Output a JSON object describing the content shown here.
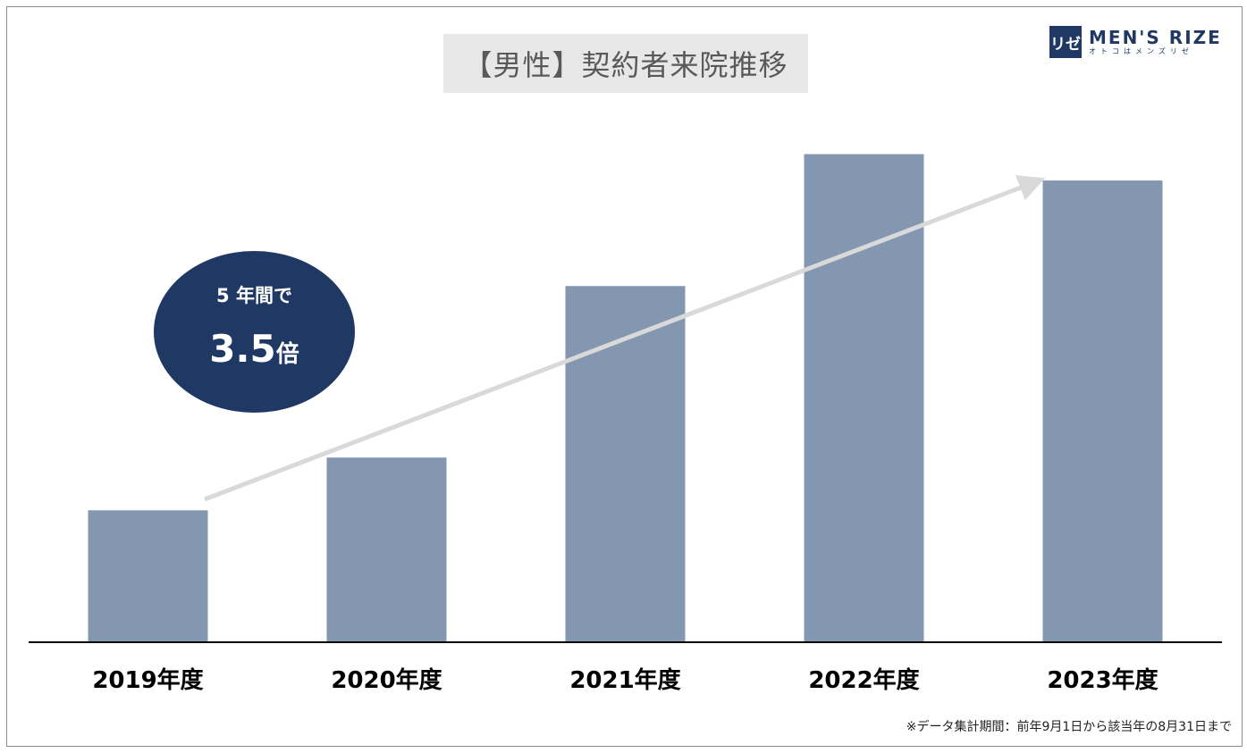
{
  "title": "【男性】契約者来院推移",
  "logo": {
    "mark": "リゼ",
    "main": "MEN'S RIZE",
    "sub": "オトコはメンズリゼ"
  },
  "callout": {
    "line1": "5 年間で",
    "value": "3.5",
    "unit": "倍"
  },
  "footnote": "※データ集計期間：前年9月1日から該当年の8月31日まで",
  "colors": {
    "bar": "#8497b0",
    "callout": "#203864",
    "arrow": "#d9d9d9",
    "axis": "#000000"
  },
  "chart_data": {
    "type": "bar",
    "categories": [
      "2019年度",
      "2020年度",
      "2021年度",
      "2022年度",
      "2023年度"
    ],
    "values": [
      1.0,
      1.4,
      2.7,
      3.7,
      3.5
    ],
    "ylim": [
      0,
      3.9
    ],
    "title": "【男性】契約者来院推移",
    "xlabel": "",
    "ylabel": "",
    "grid": false,
    "annotation": "5 年間で 3.5倍"
  }
}
